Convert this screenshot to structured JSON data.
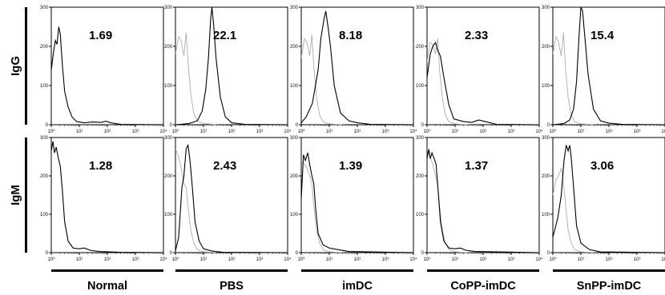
{
  "chart_data": {
    "type": "histogram-grid",
    "rows": [
      "IgG",
      "IgM"
    ],
    "columns": [
      "Normal",
      "PBS",
      "imDC",
      "CoPP-imDC",
      "SnPP-imDC"
    ],
    "xaxis": {
      "scale": "log",
      "range": [
        1,
        10000
      ],
      "tick_labels": [
        "10⁰",
        "10¹",
        "10²",
        "10³",
        "10⁴"
      ]
    },
    "yaxis": {
      "range": [
        0,
        300
      ],
      "tick_labels": [
        "0",
        "100",
        "200",
        "300"
      ]
    },
    "colors": {
      "sample": "#000000",
      "control": "#b5b5b5"
    },
    "panels": [
      [
        {
          "label": "1.69",
          "control": null,
          "sample": [
            [
              1,
              140
            ],
            [
              1.2,
              185
            ],
            [
              1.4,
              215
            ],
            [
              1.6,
              205
            ],
            [
              1.85,
              250
            ],
            [
              2.1,
              230
            ],
            [
              2.5,
              150
            ],
            [
              3,
              85
            ],
            [
              4,
              45
            ],
            [
              5.5,
              20
            ],
            [
              8,
              8
            ],
            [
              15,
              5
            ],
            [
              30,
              7
            ],
            [
              60,
              6
            ],
            [
              90,
              9
            ],
            [
              130,
              5
            ],
            [
              300,
              1
            ],
            [
              10000,
              0
            ]
          ]
        },
        {
          "label": "22.1",
          "control": [
            [
              1,
              180
            ],
            [
              1.3,
              225
            ],
            [
              1.6,
              215
            ],
            [
              2,
              175
            ],
            [
              2.4,
              235
            ],
            [
              2.8,
              160
            ],
            [
              3.5,
              80
            ],
            [
              4.5,
              30
            ],
            [
              6,
              10
            ],
            [
              10,
              3
            ],
            [
              30,
              0
            ]
          ],
          "sample": [
            [
              1,
              0
            ],
            [
              3,
              3
            ],
            [
              6,
              10
            ],
            [
              9,
              35
            ],
            [
              12,
              90
            ],
            [
              15,
              170
            ],
            [
              18,
              270
            ],
            [
              20,
              300
            ],
            [
              23,
              255
            ],
            [
              28,
              170
            ],
            [
              40,
              70
            ],
            [
              60,
              20
            ],
            [
              100,
              5
            ],
            [
              300,
              1
            ],
            [
              10000,
              0
            ]
          ]
        },
        {
          "label": "8.18",
          "control": [
            [
              1,
              170
            ],
            [
              1.3,
              220
            ],
            [
              1.6,
              210
            ],
            [
              2,
              175
            ],
            [
              2.4,
              230
            ],
            [
              2.8,
              150
            ],
            [
              3.5,
              70
            ],
            [
              4.5,
              25
            ],
            [
              6,
              8
            ],
            [
              10,
              2
            ],
            [
              30,
              0
            ]
          ],
          "sample": [
            [
              1,
              5
            ],
            [
              1.5,
              20
            ],
            [
              2.5,
              55
            ],
            [
              4,
              140
            ],
            [
              5,
              220
            ],
            [
              6.5,
              270
            ],
            [
              7.5,
              290
            ],
            [
              9,
              250
            ],
            [
              11,
              200
            ],
            [
              15,
              100
            ],
            [
              25,
              30
            ],
            [
              50,
              10
            ],
            [
              100,
              5
            ],
            [
              300,
              1
            ],
            [
              10000,
              0
            ]
          ]
        },
        {
          "label": "2.33",
          "control": [
            [
              1,
              160
            ],
            [
              1.3,
              210
            ],
            [
              1.6,
              205
            ],
            [
              2,
              180
            ],
            [
              2.4,
              220
            ],
            [
              2.8,
              140
            ],
            [
              3.5,
              70
            ],
            [
              4.5,
              25
            ],
            [
              6,
              8
            ],
            [
              10,
              2
            ],
            [
              30,
              0
            ]
          ],
          "sample": [
            [
              1,
              120
            ],
            [
              1.3,
              180
            ],
            [
              1.6,
              200
            ],
            [
              2,
              210
            ],
            [
              2.4,
              190
            ],
            [
              3,
              175
            ],
            [
              4,
              120
            ],
            [
              6,
              50
            ],
            [
              9,
              15
            ],
            [
              20,
              8
            ],
            [
              40,
              6
            ],
            [
              70,
              12
            ],
            [
              120,
              8
            ],
            [
              300,
              1
            ],
            [
              10000,
              0
            ]
          ]
        },
        {
          "label": "15.4",
          "control": [
            [
              1,
              180
            ],
            [
              1.3,
              225
            ],
            [
              1.6,
              210
            ],
            [
              2,
              175
            ],
            [
              2.4,
              235
            ],
            [
              2.8,
              150
            ],
            [
              3.5,
              70
            ],
            [
              4.5,
              25
            ],
            [
              6,
              8
            ],
            [
              10,
              2
            ],
            [
              30,
              0
            ]
          ],
          "sample": [
            [
              1,
              0
            ],
            [
              2.5,
              3
            ],
            [
              4,
              12
            ],
            [
              5.5,
              40
            ],
            [
              7,
              110
            ],
            [
              8.5,
              220
            ],
            [
              10,
              300
            ],
            [
              11.5,
              290
            ],
            [
              14,
              220
            ],
            [
              18,
              130
            ],
            [
              28,
              40
            ],
            [
              50,
              10
            ],
            [
              100,
              4
            ],
            [
              300,
              1
            ],
            [
              10000,
              0
            ]
          ]
        }
      ],
      [
        {
          "label": "1.28",
          "control": null,
          "sample": [
            [
              1,
              265
            ],
            [
              1.15,
              290
            ],
            [
              1.3,
              260
            ],
            [
              1.5,
              275
            ],
            [
              1.8,
              245
            ],
            [
              2.1,
              225
            ],
            [
              2.5,
              160
            ],
            [
              3,
              80
            ],
            [
              4,
              30
            ],
            [
              6,
              12
            ],
            [
              10,
              10
            ],
            [
              15,
              12
            ],
            [
              25,
              6
            ],
            [
              50,
              3
            ],
            [
              300,
              1
            ],
            [
              10000,
              0
            ]
          ]
        },
        {
          "label": "2.43",
          "control": [
            [
              1,
              270
            ],
            [
              1.3,
              250
            ],
            [
              1.6,
              220
            ],
            [
              2,
              180
            ],
            [
              2.4,
              170
            ],
            [
              2.8,
              120
            ],
            [
              3.5,
              60
            ],
            [
              4.5,
              25
            ],
            [
              6,
              8
            ],
            [
              10,
              2
            ],
            [
              30,
              0
            ]
          ],
          "sample": [
            [
              1,
              5
            ],
            [
              1.3,
              40
            ],
            [
              1.7,
              170
            ],
            [
              2,
              200
            ],
            [
              2.4,
              270
            ],
            [
              2.8,
              280
            ],
            [
              3.3,
              240
            ],
            [
              4,
              170
            ],
            [
              5,
              80
            ],
            [
              7,
              30
            ],
            [
              10,
              10
            ],
            [
              20,
              4
            ],
            [
              50,
              1
            ],
            [
              10000,
              0
            ]
          ]
        },
        {
          "label": "1.39",
          "control": [
            [
              1,
              240
            ],
            [
              1.3,
              230
            ],
            [
              1.6,
              220
            ],
            [
              2,
              200
            ],
            [
              2.4,
              180
            ],
            [
              2.8,
              120
            ],
            [
              3.5,
              60
            ],
            [
              4.5,
              25
            ],
            [
              6,
              8
            ],
            [
              10,
              2
            ],
            [
              30,
              0
            ]
          ],
          "sample": [
            [
              1,
              140
            ],
            [
              1.2,
              255
            ],
            [
              1.4,
              240
            ],
            [
              1.7,
              260
            ],
            [
              2,
              230
            ],
            [
              2.4,
              200
            ],
            [
              2.8,
              180
            ],
            [
              3.3,
              110
            ],
            [
              4,
              50
            ],
            [
              6,
              20
            ],
            [
              10,
              12
            ],
            [
              20,
              8
            ],
            [
              50,
              3
            ],
            [
              10000,
              0
            ]
          ]
        },
        {
          "label": "1.37",
          "control": [
            [
              1,
              270
            ],
            [
              1.3,
              250
            ],
            [
              1.6,
              230
            ],
            [
              2,
              200
            ],
            [
              2.4,
              175
            ],
            [
              2.8,
              120
            ],
            [
              3.5,
              60
            ],
            [
              4.5,
              25
            ],
            [
              6,
              8
            ],
            [
              10,
              2
            ],
            [
              30,
              0
            ]
          ],
          "sample": [
            [
              1,
              245
            ],
            [
              1.15,
              270
            ],
            [
              1.3,
              245
            ],
            [
              1.5,
              260
            ],
            [
              1.8,
              245
            ],
            [
              2.1,
              230
            ],
            [
              2.5,
              160
            ],
            [
              3,
              80
            ],
            [
              4,
              30
            ],
            [
              6,
              12
            ],
            [
              10,
              10
            ],
            [
              15,
              12
            ],
            [
              25,
              6
            ],
            [
              50,
              3
            ],
            [
              10000,
              0
            ]
          ]
        },
        {
          "label": "3.06",
          "control": [
            [
              1,
              150
            ],
            [
              1.3,
              190
            ],
            [
              1.6,
              200
            ],
            [
              2,
              220
            ],
            [
              2.4,
              180
            ],
            [
              2.8,
              130
            ],
            [
              3.5,
              60
            ],
            [
              4.5,
              25
            ],
            [
              6,
              8
            ],
            [
              10,
              2
            ],
            [
              30,
              0
            ]
          ],
          "sample": [
            [
              1,
              40
            ],
            [
              1.5,
              90
            ],
            [
              2,
              150
            ],
            [
              2.5,
              240
            ],
            [
              3,
              280
            ],
            [
              3.5,
              265
            ],
            [
              4,
              280
            ],
            [
              4.5,
              250
            ],
            [
              5.5,
              170
            ],
            [
              7,
              70
            ],
            [
              10,
              25
            ],
            [
              20,
              8
            ],
            [
              50,
              2
            ],
            [
              10000,
              0
            ]
          ]
        }
      ]
    ]
  }
}
